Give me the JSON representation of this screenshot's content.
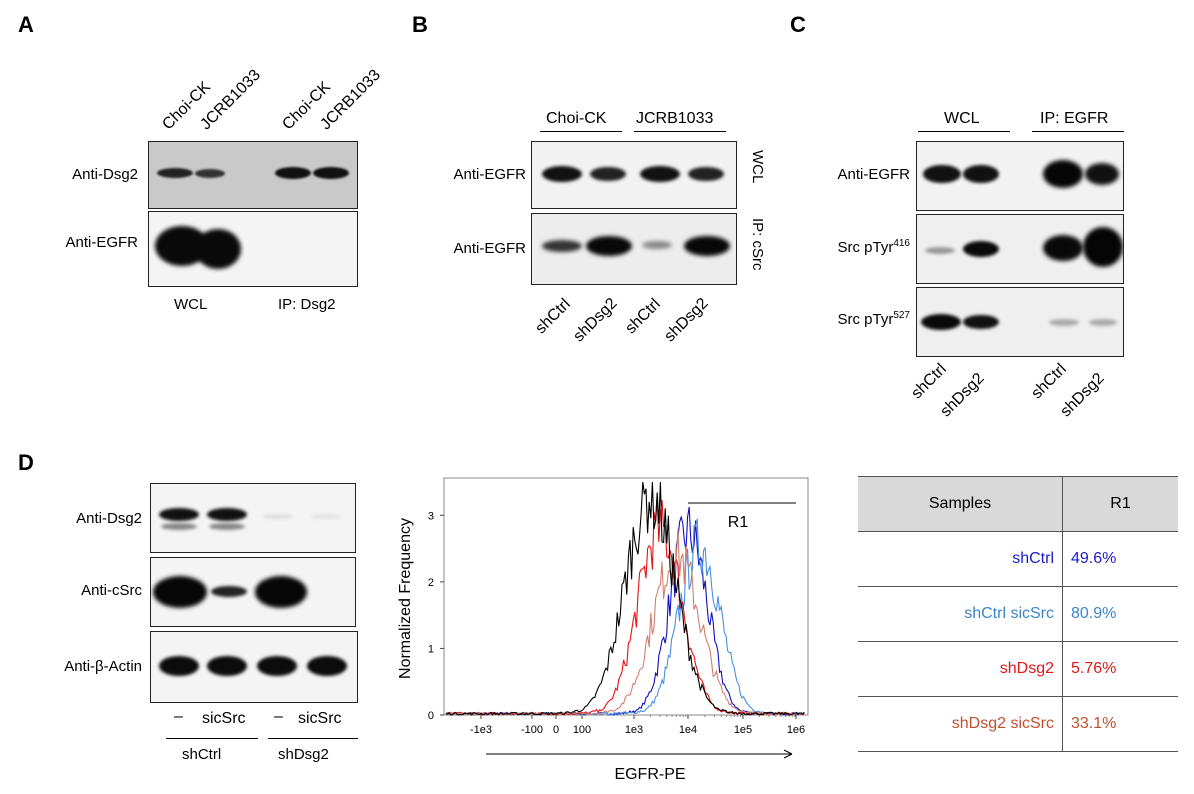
{
  "panel_labels": {
    "a": "A",
    "b": "B",
    "c": "C",
    "d": "D"
  },
  "panelA": {
    "lanes": [
      "Choi-CK",
      "JCRB1033",
      "Choi-CK",
      "JCRB1033"
    ],
    "rows": [
      "Anti-Dsg2",
      "Anti-EGFR"
    ],
    "bottom": [
      "WCL",
      "IP: Dsg2"
    ]
  },
  "panelB": {
    "groups": [
      "Choi-CK",
      "JCRB1033"
    ],
    "rows": [
      "Anti-EGFR",
      "Anti-EGFR"
    ],
    "side": [
      "WCL",
      "IP: cSrc"
    ],
    "lanes": [
      "shCtrl",
      "shDsg2",
      "shCtrl",
      "shDsg2"
    ]
  },
  "panelC": {
    "groups": [
      "WCL",
      "IP: EGFR"
    ],
    "rows": [
      "Anti-EGFR",
      "Src pTyr",
      "Src pTyr"
    ],
    "sups": [
      "416",
      "527"
    ],
    "lanes": [
      "shCtrl",
      "shDsg2",
      "shCtrl",
      "shDsg2"
    ]
  },
  "panelD": {
    "rows": [
      "Anti-Dsg2",
      "Anti-cSrc",
      "Anti-β-Actin"
    ],
    "lanes": [
      "–",
      "sicSrc",
      "–",
      "sicSrc"
    ],
    "groups": [
      "shCtrl",
      "shDsg2"
    ]
  },
  "chart_data": {
    "type": "line",
    "xlabel": "EGFR-PE",
    "ylabel": "Normalized Frequency",
    "xticks": [
      "-1e3",
      "-100",
      "0",
      "100",
      "1e3",
      "1e4",
      "1e5",
      "1e6"
    ],
    "yticks": [
      "0",
      "1",
      "2",
      "3"
    ],
    "ylim": [
      0,
      3.5
    ],
    "gate_label": "R1",
    "series": [
      {
        "name": "shCtrl",
        "color": "#1010c0",
        "peak_x": "1e4",
        "peak_y": 2.75
      },
      {
        "name": "shCtrl sicSrc",
        "color": "#4a8fe0",
        "peak_x": "1.6e4",
        "peak_y": 2.55
      },
      {
        "name": "shDsg2",
        "color": "#e81010",
        "peak_x": "3e3",
        "peak_y": 2.8
      },
      {
        "name": "shDsg2 sicSrc",
        "color": "#d08070",
        "peak_x": "6e3",
        "peak_y": 2.4
      },
      {
        "color": "#000000",
        "peak_x": "2e3",
        "peak_y": 3.3
      }
    ]
  },
  "table": {
    "headers": [
      "Samples",
      "R1"
    ],
    "rows": [
      {
        "sample": "shCtrl",
        "value": "49.6%",
        "color": "#1a1ad0"
      },
      {
        "sample": "shCtrl sicSrc",
        "value": "80.9%",
        "color": "#3a86c8"
      },
      {
        "sample": "shDsg2",
        "value": "5.76%",
        "color": "#e01818"
      },
      {
        "sample": "shDsg2 sicSrc",
        "value": "33.1%",
        "color": "#c05030"
      }
    ]
  }
}
